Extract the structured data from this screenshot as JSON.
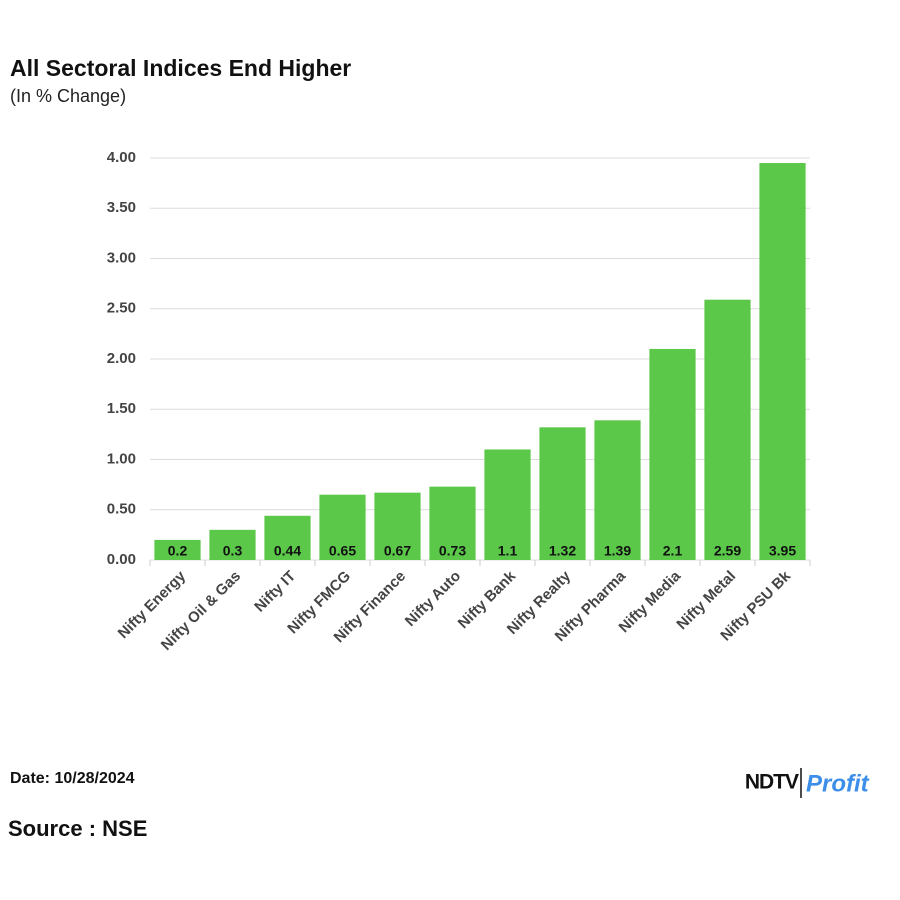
{
  "chart_data": {
    "type": "bar",
    "title": "All Sectoral Indices End Higher",
    "subtitle": "(In % Change)",
    "categories": [
      "Nifty Energy",
      "Nifty Oil & Gas",
      "Nifty IT",
      "Nifty FMCG",
      "Nifty Finance",
      "Nifty Auto",
      "Nifty Bank",
      "Nifty Realty",
      "Nifty Pharma",
      "Nifty Media",
      "Nifty Metal",
      "Nifty PSU Bk"
    ],
    "values": [
      0.2,
      0.3,
      0.44,
      0.65,
      0.67,
      0.73,
      1.1,
      1.32,
      1.39,
      2.1,
      2.59,
      3.95
    ],
    "color": "#5cc84a",
    "ylim": [
      0,
      4
    ],
    "yticks": [
      {
        "value": 0,
        "label": "0.00"
      },
      {
        "value": 0.5,
        "label": "0.50"
      },
      {
        "value": 1,
        "label": "1.00"
      },
      {
        "value": 1.5,
        "label": "1.50"
      },
      {
        "value": 2,
        "label": "2.00"
      },
      {
        "value": 2.5,
        "label": "2.50"
      },
      {
        "value": 3,
        "label": "3.00"
      },
      {
        "value": 3.5,
        "label": "3.50"
      },
      {
        "value": 4,
        "label": "4.00"
      }
    ],
    "grid": true,
    "date": "Date: 10/28/2024",
    "source": "Source : NSE",
    "logo": {
      "left": "NDTV",
      "right": "Profit"
    }
  }
}
